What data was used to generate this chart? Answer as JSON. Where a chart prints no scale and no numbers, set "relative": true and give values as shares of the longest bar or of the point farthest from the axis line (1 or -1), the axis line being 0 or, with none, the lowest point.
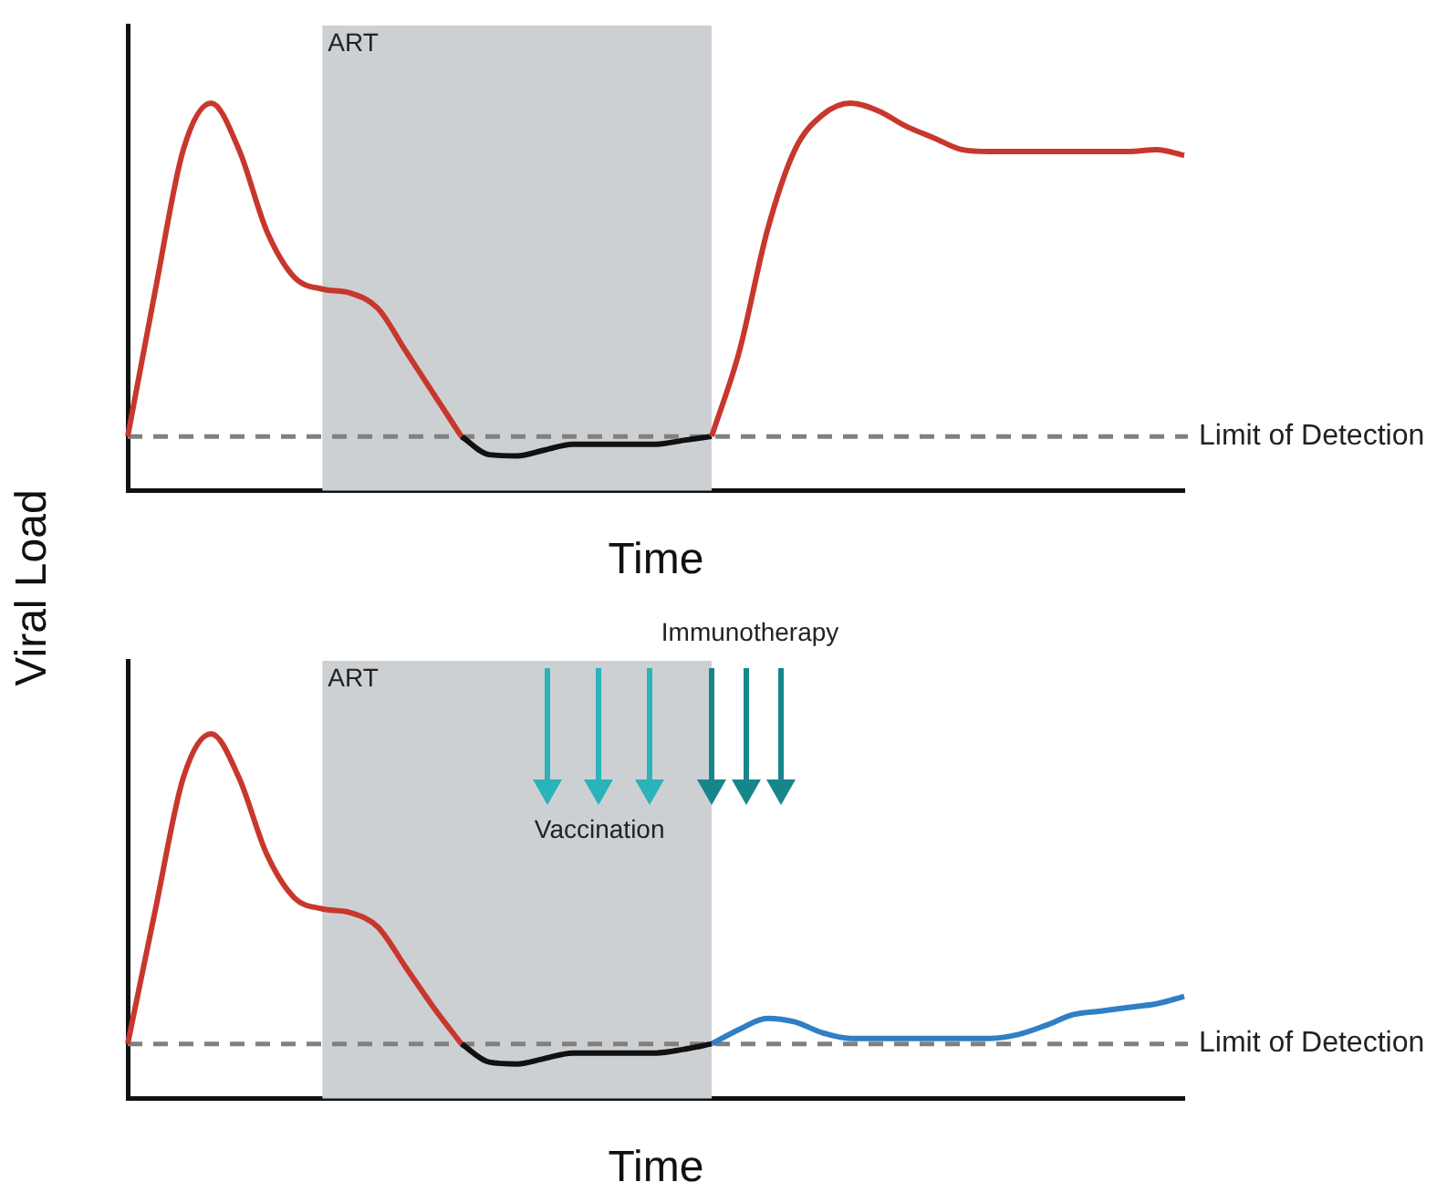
{
  "chart_data": [
    {
      "type": "line",
      "relative": true,
      "ylabel": "Viral Load",
      "xlabel": "Time",
      "legend": false,
      "grid": false,
      "annotations": [
        "ART"
      ],
      "categories": [
        null,
        null,
        null,
        null,
        null,
        null,
        null,
        null,
        null,
        null,
        null,
        null,
        null,
        null,
        null,
        null,
        null,
        null,
        null,
        null,
        null,
        null,
        null,
        null,
        null,
        null,
        null,
        null,
        null,
        null,
        null,
        null,
        null,
        null,
        null,
        null,
        null,
        null,
        null
      ],
      "series": [
        {
          "color": "#c8372d",
          "values": [
            0.14,
            0.52,
            0.88,
            1,
            0.88,
            0.67,
            0.55,
            0.52,
            0.51,
            0.47,
            0.36,
            0.25,
            0.14,
            null,
            null,
            null,
            null,
            null,
            null,
            null,
            null,
            0.14,
            0.36,
            0.67,
            0.88,
            0.97,
            1,
            0.98,
            0.94,
            0.91,
            0.88,
            0.875,
            0.875,
            0.875,
            0.875,
            0.875,
            0.875,
            0.88,
            0.865
          ]
        },
        {
          "color": "#111111",
          "values": [
            null,
            null,
            null,
            null,
            null,
            null,
            null,
            null,
            null,
            null,
            null,
            null,
            0.14,
            0.093,
            0.09,
            0.105,
            0.12,
            0.12,
            0.12,
            0.12,
            0.13,
            0.14,
            null,
            null,
            null,
            null,
            null,
            null,
            null,
            null,
            null,
            null,
            null,
            null,
            null,
            null,
            null,
            null,
            null
          ]
        }
      ],
      "ref_lines": [
        {
          "axis": "y",
          "value": 0.14,
          "label": "Limit of Detection",
          "color": "#808080",
          "line_style": "dashed"
        }
      ]
    },
    {
      "type": "line",
      "relative": true,
      "xlabel": "Time",
      "legend": false,
      "grid": false,
      "categories": [
        null,
        null,
        null,
        null,
        null,
        null,
        null,
        null,
        null,
        null,
        null,
        null,
        null,
        null,
        null,
        null,
        null,
        null,
        null,
        null,
        null,
        null,
        null,
        null,
        null,
        null,
        null,
        null,
        null,
        null,
        null,
        null,
        null,
        null,
        null,
        null,
        null,
        null,
        null
      ],
      "series": [
        {
          "color": "#c8372d",
          "values": [
            0.15,
            0.52,
            0.88,
            1,
            0.88,
            0.67,
            0.55,
            0.52,
            0.51,
            0.47,
            0.36,
            0.25,
            0.15,
            null,
            null,
            null,
            null,
            null,
            null,
            null,
            null,
            null,
            null,
            null,
            null,
            null,
            null,
            null,
            null,
            null,
            null,
            null,
            null,
            null,
            null,
            null,
            null,
            null,
            null
          ]
        },
        {
          "color": "#111111",
          "values": [
            null,
            null,
            null,
            null,
            null,
            null,
            null,
            null,
            null,
            null,
            null,
            null,
            0.15,
            0.1,
            0.095,
            0.11,
            0.125,
            0.125,
            0.125,
            0.125,
            0.135,
            0.15,
            null,
            null,
            null,
            null,
            null,
            null,
            null,
            null,
            null,
            null,
            null,
            null,
            null,
            null,
            null,
            null,
            null
          ]
        },
        {
          "color": "#2f7fc4",
          "values": [
            null,
            null,
            null,
            null,
            null,
            null,
            null,
            null,
            null,
            null,
            null,
            null,
            null,
            null,
            null,
            null,
            null,
            null,
            null,
            null,
            null,
            0.15,
            0.19,
            0.22,
            0.21,
            0.18,
            0.165,
            0.165,
            0.165,
            0.165,
            0.165,
            0.165,
            0.175,
            0.2,
            0.23,
            0.24,
            0.25,
            0.26,
            0.28
          ]
        }
      ],
      "ref_lines": [
        {
          "axis": "y",
          "value": 0.15,
          "label": "Limit of Detection",
          "color": "#808080",
          "line_style": "dashed"
        }
      ],
      "annotations": [
        "Immunotherapy",
        "Vaccination",
        "ART"
      ]
    }
  ]
}
